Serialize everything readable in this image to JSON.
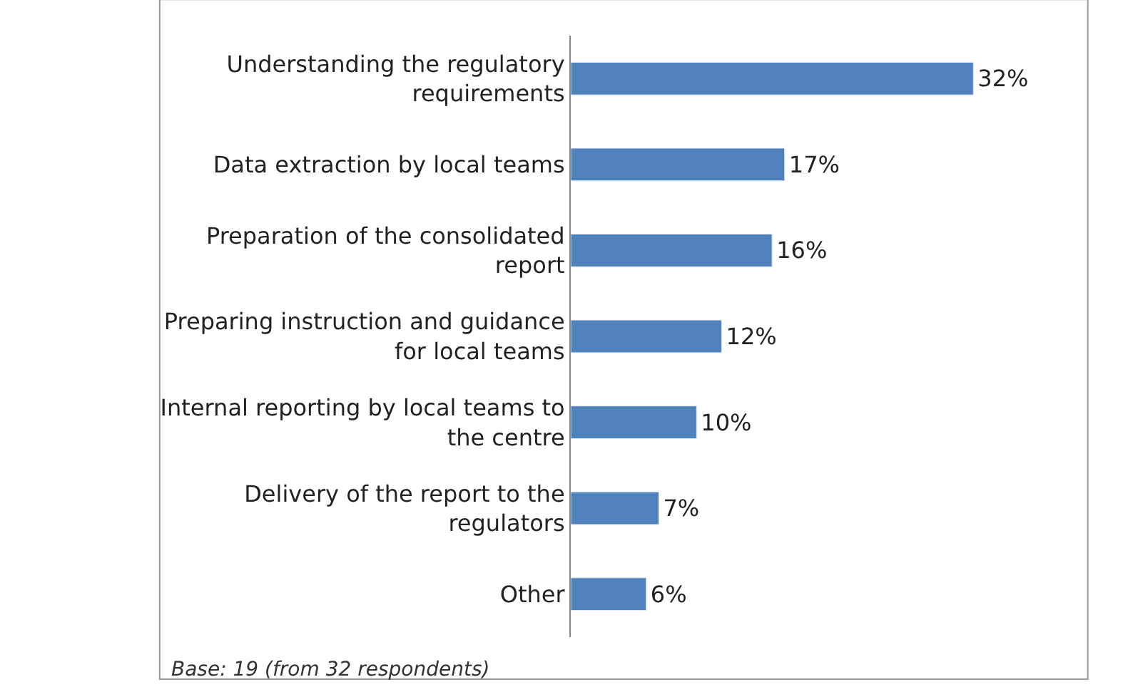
{
  "chart_data": {
    "type": "bar",
    "orientation": "horizontal",
    "categories": [
      "Understanding the regulatory requirements",
      "Data extraction by local teams",
      "Preparation of the consolidated report",
      "Preparing instruction and guidance for local teams",
      "Internal reporting by local teams to the centre",
      "Delivery of the report to the regulators",
      "Other"
    ],
    "values": [
      32,
      17,
      16,
      12,
      10,
      7,
      6
    ],
    "value_labels": [
      "32%",
      "17%",
      "16%",
      "12%",
      "10%",
      "7%",
      "6%"
    ],
    "color": "#4f81bd",
    "annotations": [
      "Base: 19 (from 32 respondents)"
    ]
  }
}
